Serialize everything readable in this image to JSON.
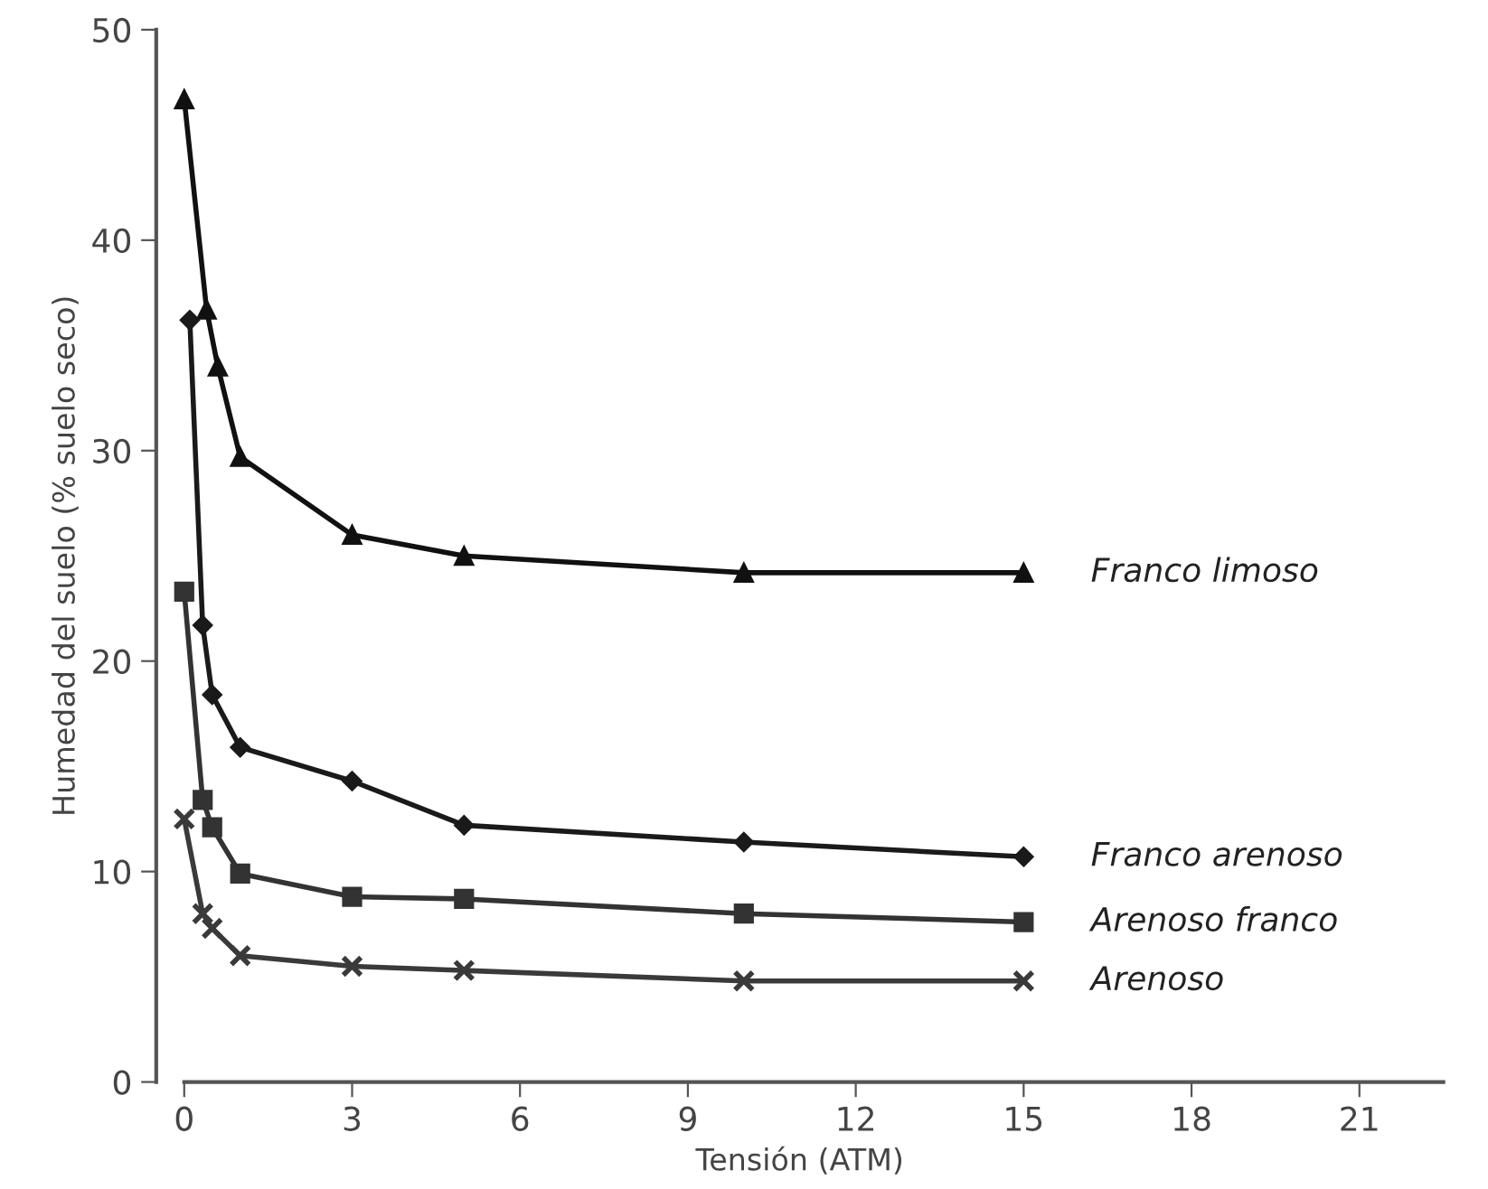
{
  "chart_data": {
    "type": "line",
    "xlabel": "Tensión (ATM)",
    "ylabel": "Humedad del suelo (% suelo seco)",
    "xlim": [
      -0.5,
      22.5
    ],
    "xticks": [
      0,
      3,
      6,
      9,
      12,
      15,
      18,
      21
    ],
    "ylim": [
      0,
      50
    ],
    "yticks": [
      0,
      10,
      20,
      30,
      40,
      50
    ],
    "grid": false,
    "legend": "right",
    "series": [
      {
        "name": "Franco limoso",
        "color": "#111111",
        "marker": "triangle",
        "x": [
          0,
          0.4,
          0.6,
          1,
          3,
          5,
          10,
          15
        ],
        "values": [
          46.7,
          36.7,
          34.0,
          29.7,
          26.0,
          25.0,
          24.2,
          24.2
        ]
      },
      {
        "name": "Franco arenoso",
        "color": "#1a1a1a",
        "marker": "diamond",
        "x": [
          0.1,
          0.33,
          0.5,
          1,
          3,
          5,
          10,
          15
        ],
        "values": [
          36.2,
          21.7,
          18.4,
          15.9,
          14.3,
          12.2,
          11.4,
          10.7
        ]
      },
      {
        "name": "Arenoso franco",
        "color": "#333333",
        "marker": "square",
        "x": [
          0,
          0.33,
          0.5,
          1,
          3,
          5,
          10,
          15
        ],
        "values": [
          23.3,
          13.4,
          12.1,
          9.9,
          8.8,
          8.7,
          8.0,
          7.6
        ]
      },
      {
        "name": "Arenoso",
        "color": "#3a3a3a",
        "marker": "cross",
        "x": [
          0,
          0.33,
          0.5,
          1,
          3,
          5,
          10,
          15
        ],
        "values": [
          12.5,
          8.0,
          7.3,
          6.0,
          5.5,
          5.3,
          4.8,
          4.8
        ]
      }
    ]
  }
}
